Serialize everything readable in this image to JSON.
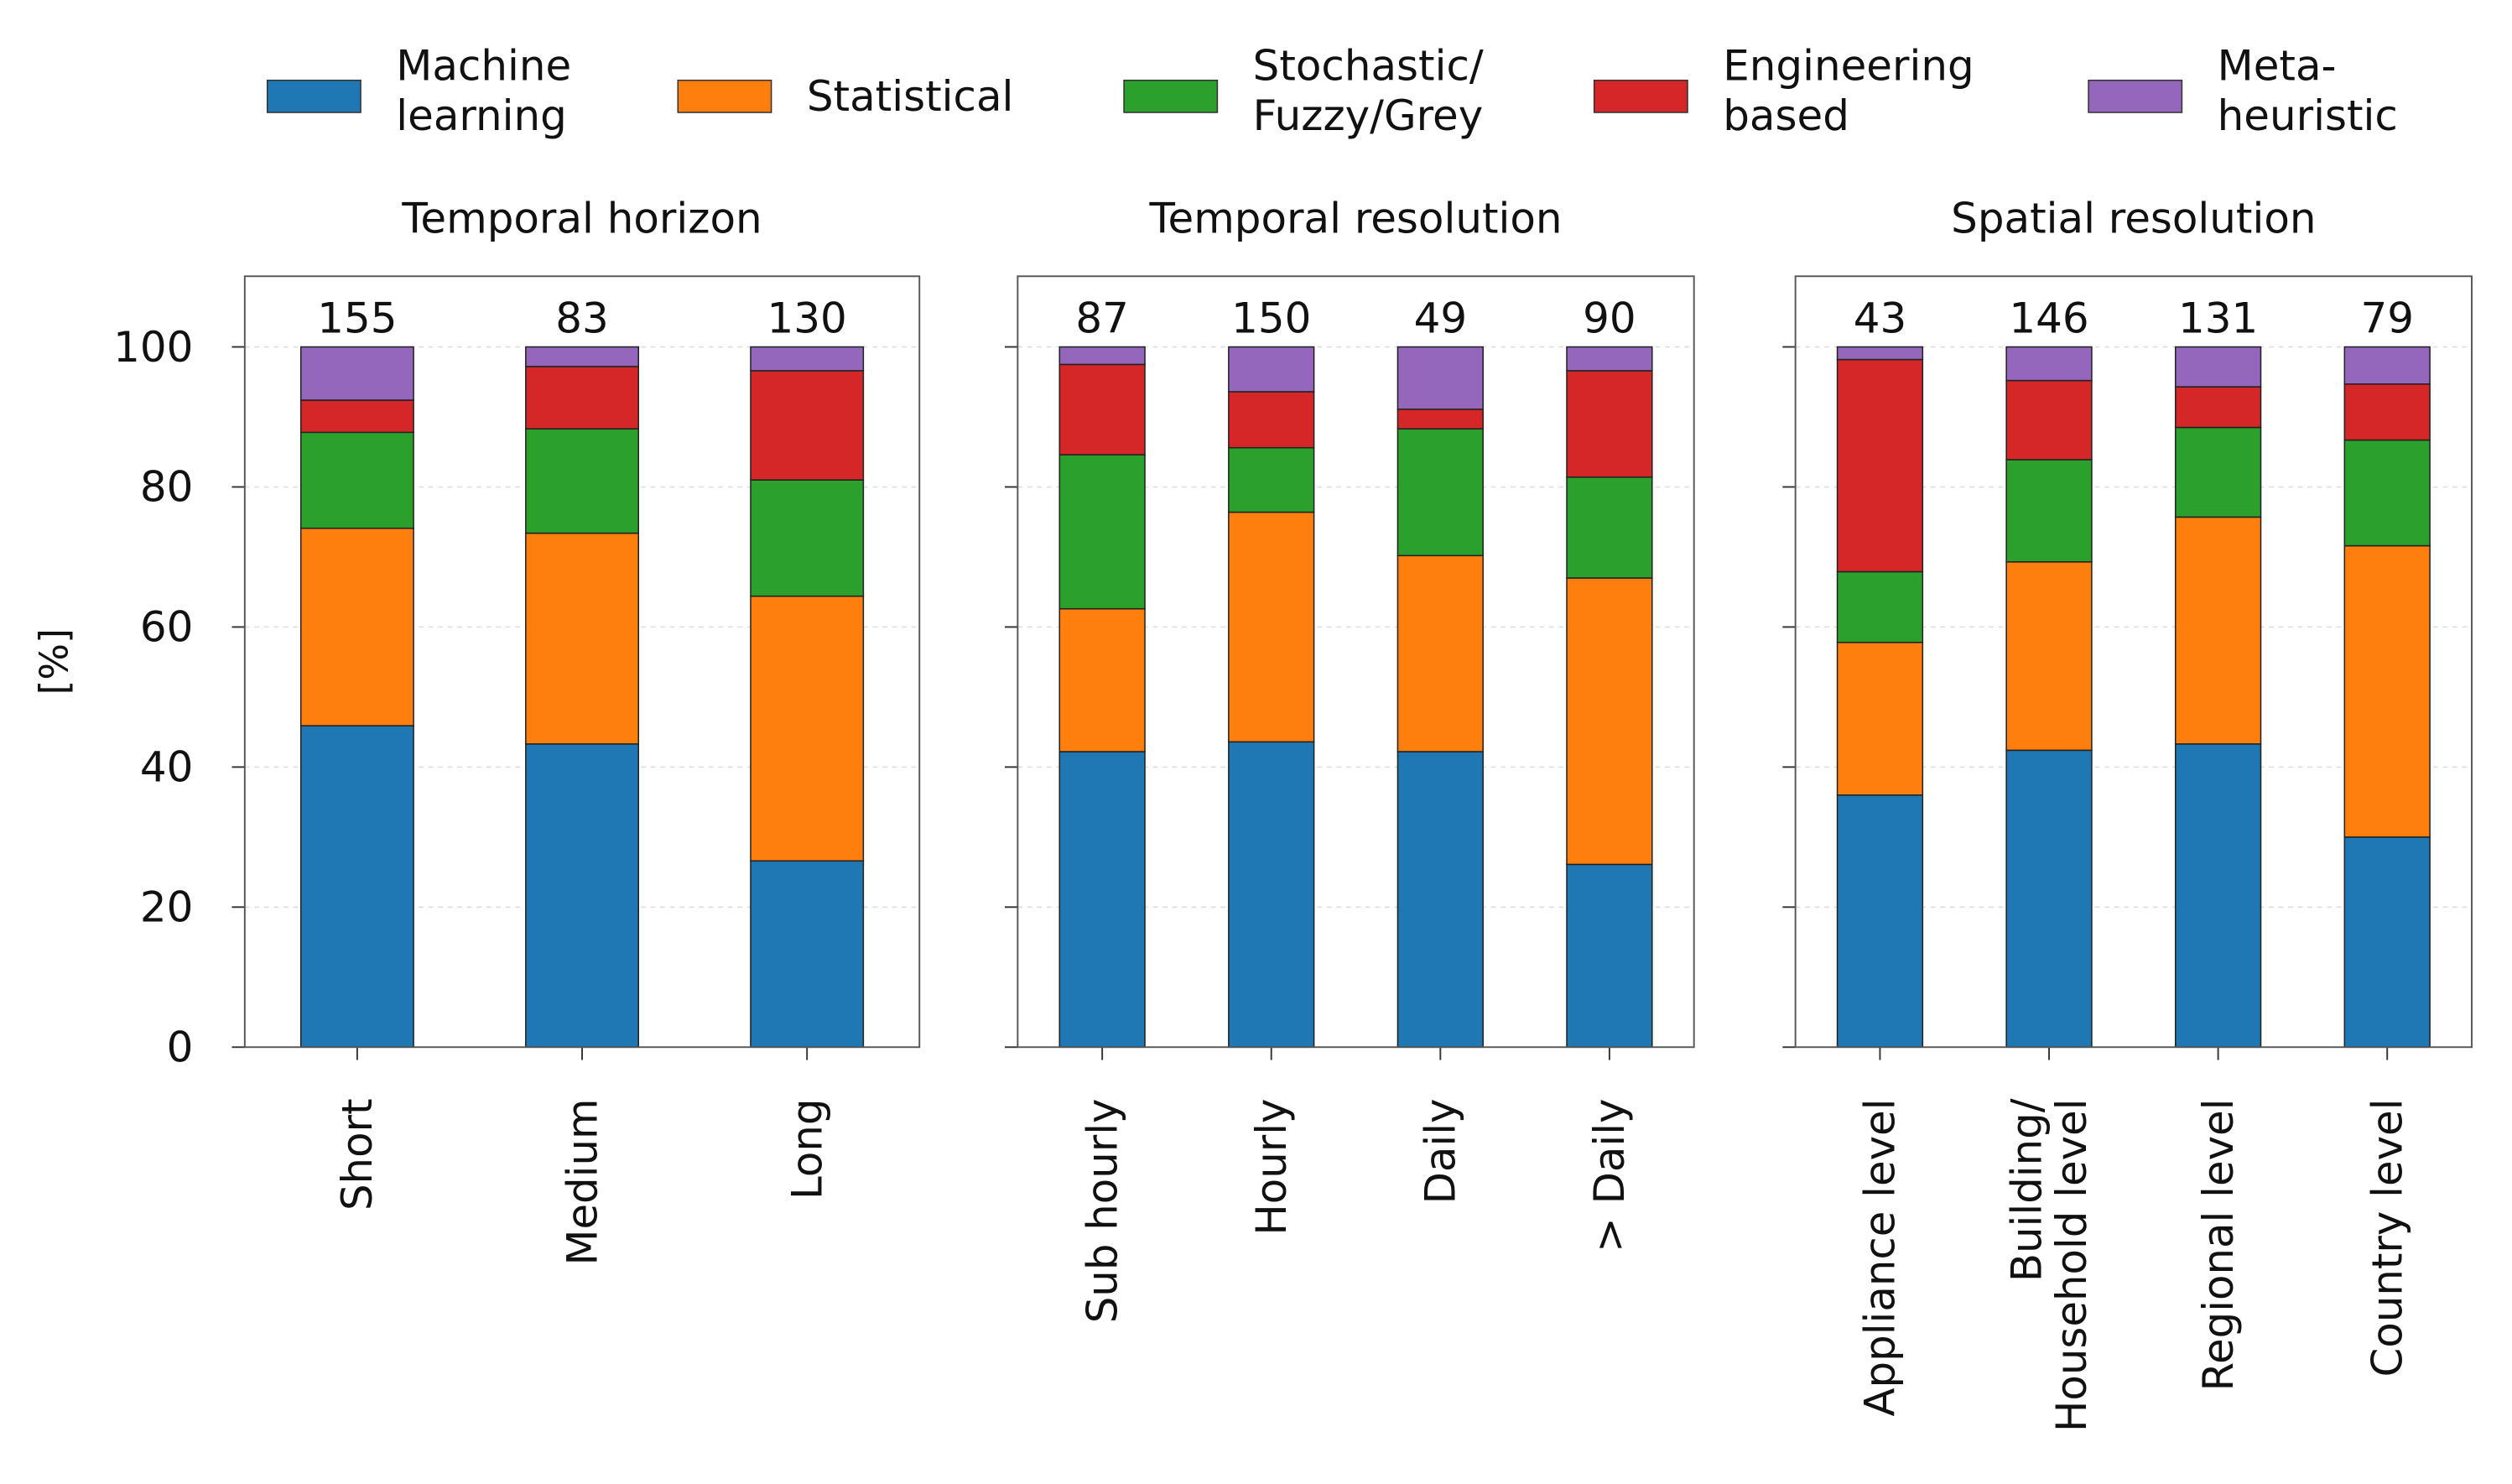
{
  "chart_data": {
    "type": "bar",
    "stacked": true,
    "ylabel": "[%]",
    "ylim": [
      0,
      110
    ],
    "yticks": [
      0,
      20,
      40,
      60,
      80,
      100
    ],
    "grid": true,
    "legend_placement": "top",
    "series": [
      {
        "name": "Machine learning",
        "lines": [
          "Machine",
          "learning"
        ],
        "color": "#1f77b4"
      },
      {
        "name": "Statistical",
        "lines": [
          "Statistical"
        ],
        "color": "#ff7f0e"
      },
      {
        "name": "Stochastic/Fuzzy/Grey",
        "lines": [
          "Stochastic/",
          "Fuzzy/Grey"
        ],
        "color": "#2ca02c"
      },
      {
        "name": "Engineering based",
        "lines": [
          "Engineering",
          "based"
        ],
        "color": "#d62728"
      },
      {
        "name": "Meta-heuristic",
        "lines": [
          "Meta-",
          "heuristic"
        ],
        "color": "#9467bd"
      }
    ],
    "panels": [
      {
        "title": "Temporal horizon",
        "categories": [
          {
            "label": [
              "Short"
            ],
            "count": "155",
            "values": [
              45.9,
              28.2,
              13.7,
              4.6,
              7.6
            ]
          },
          {
            "label": [
              "Medium"
            ],
            "count": "83",
            "values": [
              43.3,
              30.1,
              14.9,
              8.9,
              2.8
            ]
          },
          {
            "label": [
              "Long"
            ],
            "count": "130",
            "values": [
              26.6,
              37.8,
              16.6,
              15.6,
              3.4
            ]
          }
        ]
      },
      {
        "title": "Temporal resolution",
        "categories": [
          {
            "label": [
              "Sub hourly"
            ],
            "count": "87",
            "values": [
              42.2,
              20.4,
              22.0,
              12.9,
              2.5
            ]
          },
          {
            "label": [
              "Hourly"
            ],
            "count": "150",
            "values": [
              43.6,
              32.8,
              9.2,
              8.0,
              6.4
            ]
          },
          {
            "label": [
              "Daily"
            ],
            "count": "49",
            "values": [
              42.2,
              28.0,
              18.1,
              2.8,
              8.9
            ]
          },
          {
            "label": [
              "> Daily"
            ],
            "count": "90",
            "values": [
              26.1,
              40.9,
              14.4,
              15.2,
              3.4
            ]
          }
        ]
      },
      {
        "title": "Spatial resolution",
        "categories": [
          {
            "label": [
              "Appliance level"
            ],
            "count": "43",
            "values": [
              36.0,
              21.8,
              10.1,
              30.3,
              1.8
            ]
          },
          {
            "label": [
              "Building/",
              "Household level"
            ],
            "count": "146",
            "values": [
              42.4,
              26.9,
              14.6,
              11.3,
              4.8
            ]
          },
          {
            "label": [
              "Regional level"
            ],
            "count": "131",
            "values": [
              43.3,
              32.4,
              12.8,
              5.8,
              5.7
            ]
          },
          {
            "label": [
              "Country level"
            ],
            "count": "79",
            "values": [
              30.0,
              41.6,
              15.1,
              8.0,
              5.3
            ]
          }
        ]
      }
    ]
  }
}
